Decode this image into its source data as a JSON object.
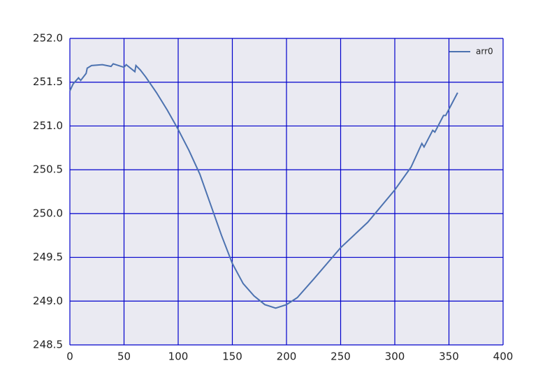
{
  "chart_data": {
    "type": "line",
    "x": [
      0,
      3,
      8,
      10,
      15,
      16,
      20,
      30,
      38,
      40,
      50,
      52,
      60,
      61,
      65,
      70,
      80,
      90,
      100,
      110,
      120,
      130,
      140,
      150,
      160,
      170,
      180,
      190,
      200,
      210,
      225,
      250,
      275,
      300,
      315,
      325,
      327,
      335,
      337,
      345,
      347,
      358
    ],
    "series": [
      {
        "name": "arr0",
        "color": "#4c72b0",
        "values": [
          251.4,
          251.48,
          251.55,
          251.52,
          251.6,
          251.66,
          251.69,
          251.7,
          251.68,
          251.71,
          251.67,
          251.7,
          251.62,
          251.69,
          251.64,
          251.56,
          251.38,
          251.18,
          250.96,
          250.72,
          250.45,
          250.1,
          249.75,
          249.43,
          249.2,
          249.06,
          248.96,
          248.92,
          248.96,
          249.04,
          249.25,
          249.61,
          249.9,
          250.27,
          250.53,
          250.8,
          250.76,
          250.95,
          250.93,
          251.12,
          251.12,
          251.38
        ]
      }
    ],
    "xlim": [
      0,
      400
    ],
    "xticks": [
      0,
      50,
      100,
      150,
      200,
      250,
      300,
      350,
      400
    ],
    "ylim": [
      248.5,
      252.0
    ],
    "yticks": [
      248.5,
      {
        "value": 249,
        "label": "249.0"
      },
      249.5,
      {
        "value": 250,
        "label": "250.0"
      },
      250.5,
      {
        "value": 251,
        "label": "251.0"
      },
      251.5,
      {
        "value": 252,
        "label": "252.0"
      }
    ],
    "grid": true,
    "legend": "upper right"
  }
}
